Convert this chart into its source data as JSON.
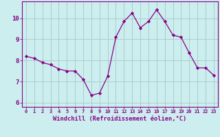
{
  "x": [
    0,
    1,
    2,
    3,
    4,
    5,
    6,
    7,
    8,
    9,
    10,
    11,
    12,
    13,
    14,
    15,
    16,
    17,
    18,
    19,
    20,
    21,
    22,
    23
  ],
  "y": [
    8.2,
    8.1,
    7.9,
    7.8,
    7.6,
    7.5,
    7.5,
    7.1,
    6.35,
    6.45,
    7.25,
    9.1,
    9.85,
    10.25,
    9.55,
    9.85,
    10.4,
    9.85,
    9.2,
    9.1,
    8.35,
    7.65,
    7.65,
    7.3
  ],
  "line_color": "#880088",
  "marker": "D",
  "marker_size": 2.2,
  "bg_color": "#cceeee",
  "grid_color": "#aacccc",
  "xlabel": "Windchill (Refroidissement éolien,°C)",
  "xlabel_color": "#880088",
  "tick_color": "#880088",
  "ylabel_ticks": [
    6,
    7,
    8,
    9,
    10
  ],
  "xlim": [
    -0.5,
    23.5
  ],
  "ylim": [
    5.8,
    10.8
  ],
  "spine_color": "#880088"
}
